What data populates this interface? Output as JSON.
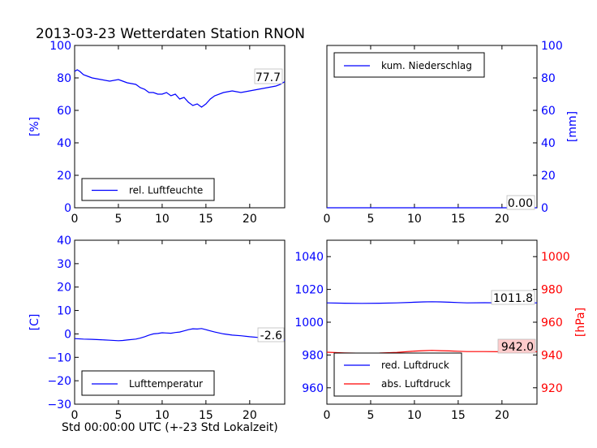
{
  "figure": {
    "title": "2013-03-23 Wetterdaten Station RNON",
    "xlabel": "Std 00:00:00 UTC (+-23 Std Lokalzeit)"
  },
  "colors": {
    "blue": "#0000ff",
    "red": "#ff0000",
    "black": "#000000",
    "callout_red_bg": "#ffcccc"
  },
  "chart_data": [
    {
      "id": "humidity",
      "type": "line",
      "ylabel": "[%]",
      "xlim": [
        0,
        24
      ],
      "ylim": [
        0,
        100
      ],
      "xticks": [
        0,
        5,
        10,
        15,
        20
      ],
      "yticks": [
        0,
        20,
        40,
        60,
        80,
        100
      ],
      "legend": {
        "placement": "lower-left"
      },
      "series": [
        {
          "name": "rel. Luftfeuchte",
          "color": "#0000ff",
          "x": [
            0,
            0.3,
            0.6,
            1,
            1.5,
            2,
            3,
            4,
            5,
            5.5,
            6,
            7,
            7.5,
            8,
            8.5,
            9,
            9.5,
            10,
            10.5,
            11,
            11.5,
            12,
            12.5,
            13,
            13.5,
            14,
            14.5,
            15,
            15.5,
            16,
            17,
            18,
            19,
            20,
            21,
            22,
            23,
            23.5,
            24
          ],
          "y": [
            84,
            85,
            84,
            82,
            81,
            80,
            79,
            78,
            79,
            78,
            77,
            76,
            74,
            73,
            71,
            71,
            70,
            70,
            71,
            69,
            70,
            67,
            68,
            65,
            63,
            64,
            62,
            64,
            67,
            69,
            71,
            72,
            71,
            72,
            73,
            74,
            75,
            76,
            77.7
          ]
        }
      ],
      "annotations": [
        {
          "text": "77.7"
        }
      ]
    },
    {
      "id": "precip",
      "type": "line",
      "ylabel": "[mm]",
      "xlim": [
        0,
        24
      ],
      "ylim": [
        0,
        100
      ],
      "xticks": [
        0,
        5,
        10,
        15,
        20
      ],
      "yticks": [
        0,
        20,
        40,
        60,
        80,
        100
      ],
      "legend": {
        "placement": "upper-left"
      },
      "series": [
        {
          "name": "kum. Niederschlag",
          "color": "#0000ff",
          "x": [
            0,
            24
          ],
          "y": [
            0,
            0
          ]
        }
      ],
      "annotations": [
        {
          "text": "0.00"
        }
      ]
    },
    {
      "id": "temperature",
      "type": "line",
      "ylabel": "[C]",
      "xlim": [
        0,
        24
      ],
      "ylim": [
        -30,
        40
      ],
      "xticks": [
        0,
        5,
        10,
        15,
        20
      ],
      "yticks": [
        -30,
        -20,
        -10,
        0,
        10,
        20,
        30,
        40
      ],
      "legend": {
        "placement": "lower-left"
      },
      "series": [
        {
          "name": "Lufttemperatur",
          "color": "#0000ff",
          "x": [
            0,
            1,
            2,
            3,
            4,
            5,
            5.5,
            6,
            7,
            7.5,
            8,
            8.5,
            9,
            9.5,
            10,
            10.5,
            11,
            11.5,
            12,
            12.5,
            13,
            13.5,
            14,
            14.5,
            15,
            15.5,
            16,
            17,
            18,
            19,
            20,
            21,
            22,
            23,
            24
          ],
          "y": [
            -2.0,
            -2.2,
            -2.3,
            -2.5,
            -2.7,
            -2.9,
            -2.8,
            -2.6,
            -2.2,
            -1.8,
            -1.2,
            -0.5,
            0.0,
            0.2,
            0.5,
            0.4,
            0.3,
            0.6,
            0.8,
            1.3,
            1.8,
            2.2,
            2.1,
            2.3,
            1.8,
            1.3,
            0.8,
            0.0,
            -0.5,
            -0.8,
            -1.2,
            -1.5,
            -1.8,
            -2.2,
            -2.6
          ]
        }
      ],
      "annotations": [
        {
          "text": "-2.6"
        }
      ]
    },
    {
      "id": "pressure",
      "type": "line",
      "left_ylabel": "",
      "right_ylabel": "[hPa]",
      "xlim": [
        0,
        24
      ],
      "ylim_left": [
        950,
        1050
      ],
      "ylim_right": [
        910,
        1010
      ],
      "xticks": [
        0,
        5,
        10,
        15,
        20
      ],
      "yticks_left": [
        960,
        980,
        1000,
        1020,
        1040
      ],
      "yticks_right": [
        920,
        940,
        960,
        980,
        1000
      ],
      "legend": {
        "placement": "lower-left"
      },
      "series": [
        {
          "name": "red. Luftdruck",
          "color": "#0000ff",
          "axis": "left",
          "x": [
            0,
            2,
            4,
            6,
            8,
            10,
            11,
            12,
            13,
            14,
            15,
            16,
            18,
            20,
            22,
            24
          ],
          "y": [
            1011.8,
            1011.6,
            1011.5,
            1011.6,
            1011.8,
            1012.2,
            1012.4,
            1012.5,
            1012.4,
            1012.2,
            1012.0,
            1011.8,
            1011.9,
            1011.8,
            1011.8,
            1011.8
          ]
        },
        {
          "name": "abs. Luftdruck",
          "color": "#ff0000",
          "axis": "right",
          "x": [
            0,
            2,
            4,
            6,
            8,
            10,
            11,
            12,
            13,
            14,
            15,
            16,
            18,
            20,
            22,
            24
          ],
          "y": [
            941.7,
            941.3,
            941.1,
            941.2,
            941.6,
            942.4,
            942.6,
            942.8,
            942.6,
            942.5,
            942.3,
            942.1,
            942.1,
            942.0,
            942.0,
            942.0
          ]
        }
      ],
      "annotations": [
        {
          "text": "1011.8"
        },
        {
          "text": "942.0"
        }
      ]
    }
  ]
}
